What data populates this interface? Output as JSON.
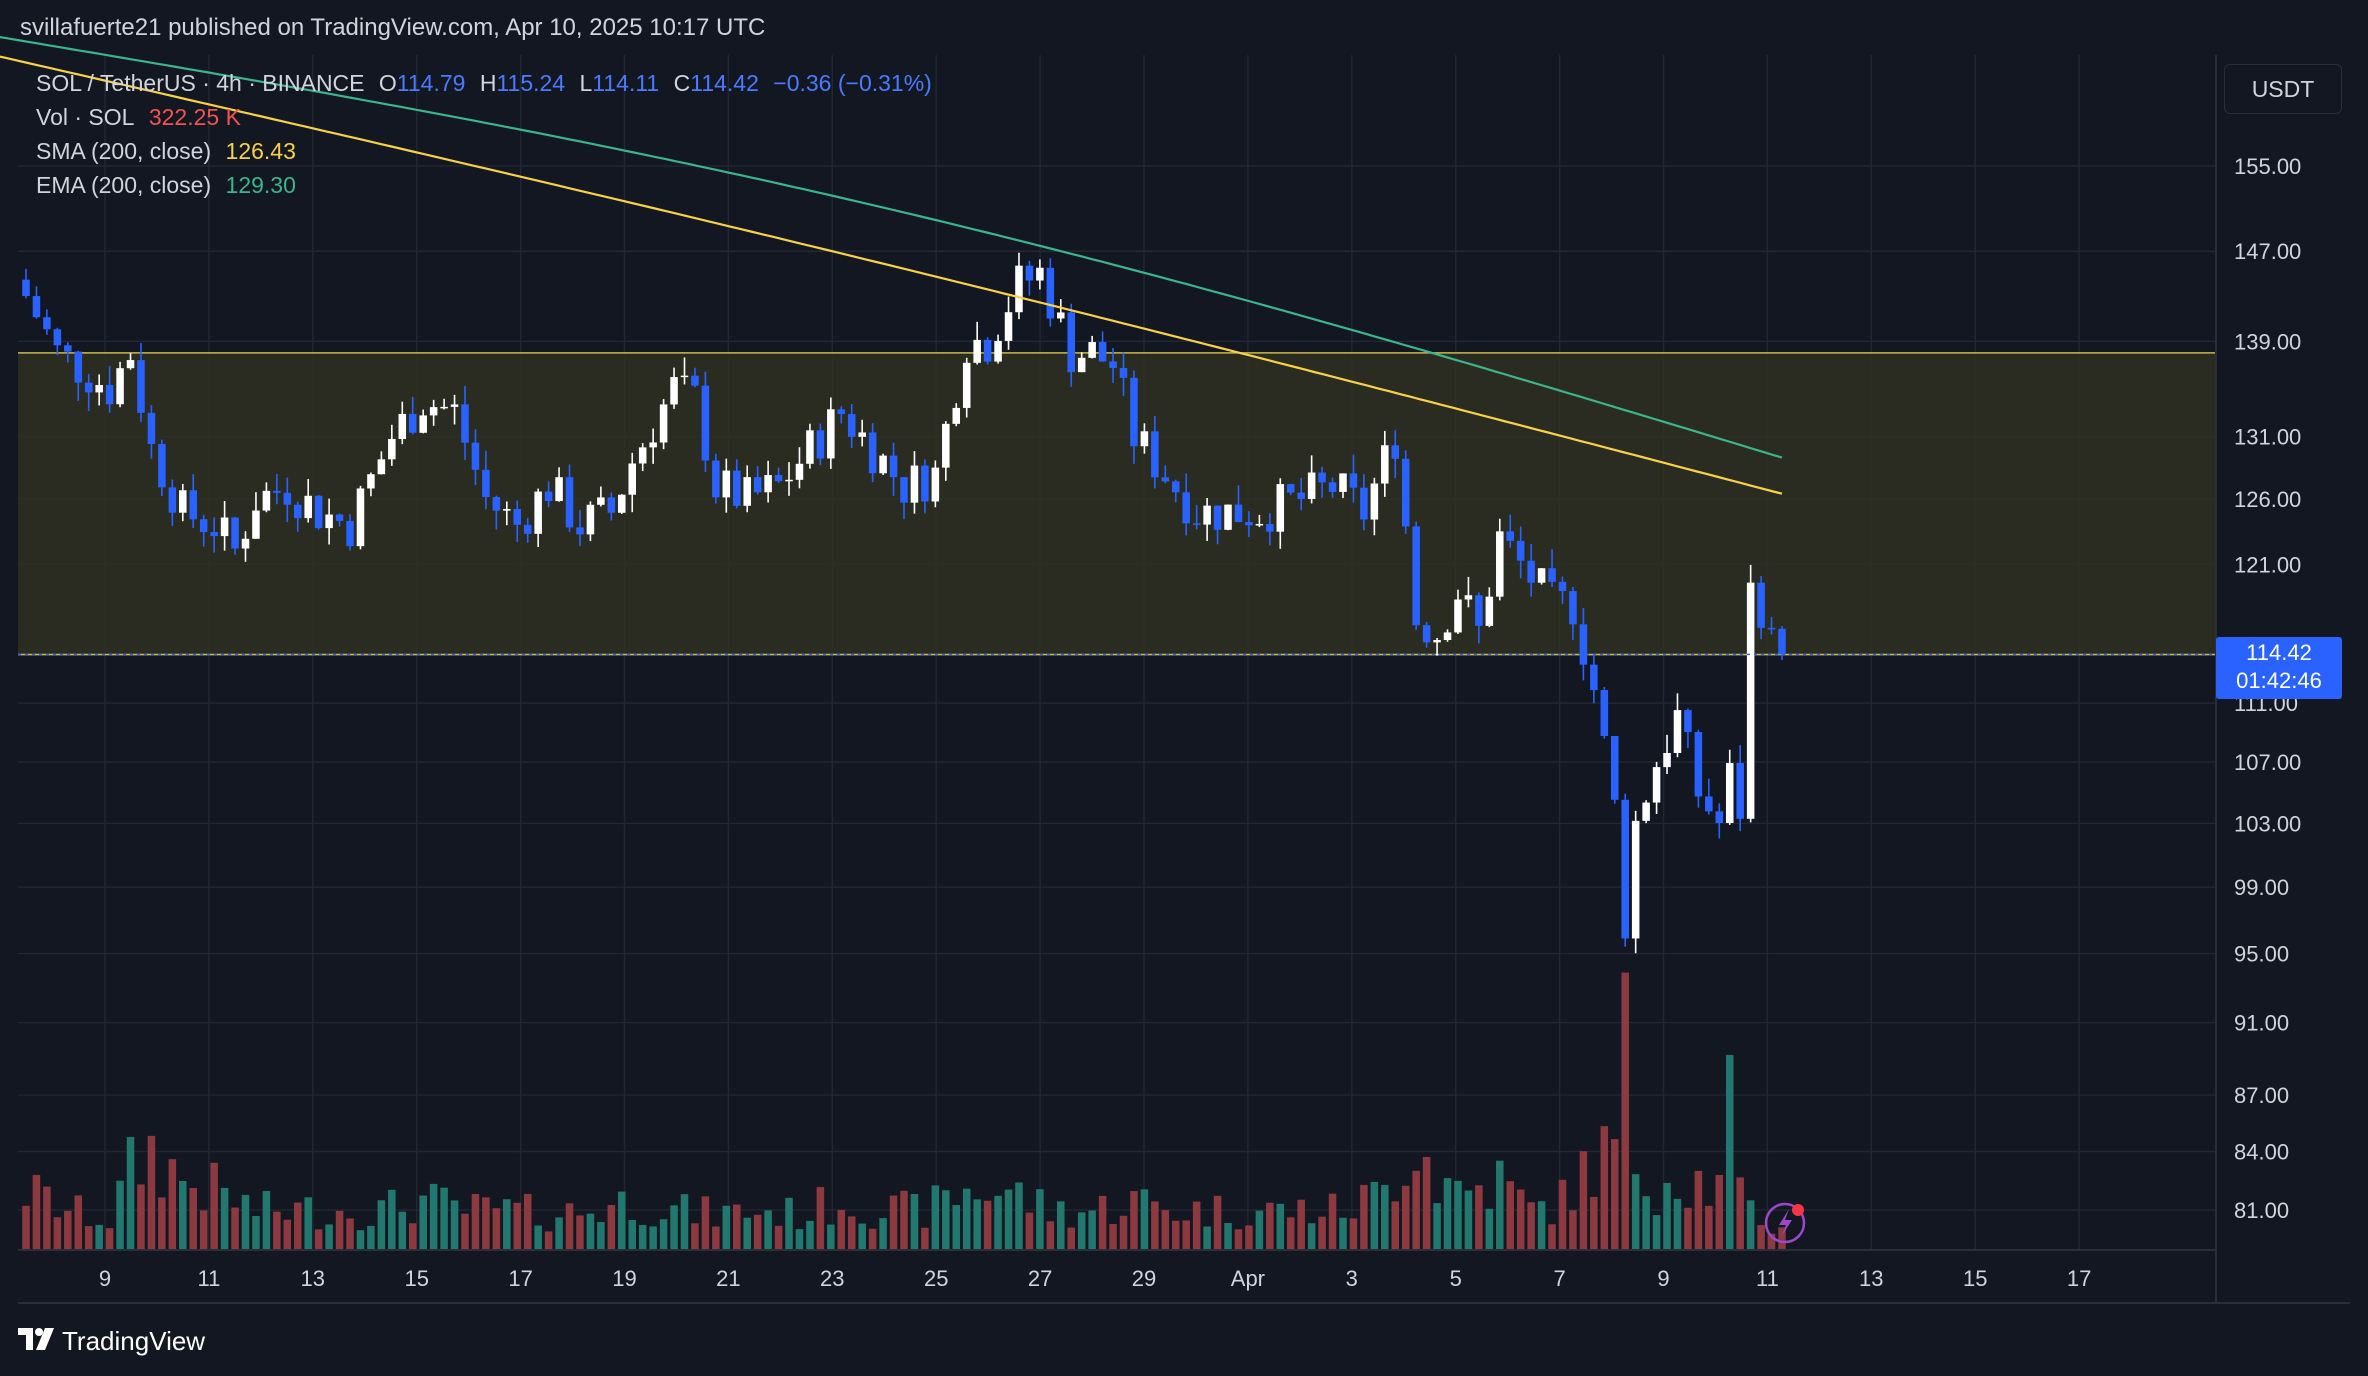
{
  "header": {
    "publisher": "svillafuerte21 published on TradingView.com, Apr 10, 2025 10:17 UTC"
  },
  "legend": {
    "symbol": "SOL / TetherUS · 4h · BINANCE",
    "o_label": "O",
    "o_value": "114.79",
    "h_label": "H",
    "h_value": "115.24",
    "l_label": "L",
    "l_value": "114.11",
    "c_label": "C",
    "c_value": "114.42",
    "change": "−0.36 (−0.31%)",
    "vol_label": "Vol · SOL",
    "vol_value": "322.25 K",
    "sma_label": "SMA (200, close)",
    "sma_value": "126.43",
    "ema_label": "EMA (200, close)",
    "ema_value": "129.30"
  },
  "currency": "USDT",
  "price_tag": {
    "price": "114.42",
    "countdown": "01:42:46"
  },
  "brand": {
    "logo": "TV",
    "name": "TradingView"
  },
  "colors": {
    "up": "#ffffff",
    "down": "#2962ff",
    "vol_up": "#22786e",
    "vol_down": "#8c3a3f",
    "sma": "#f7d147",
    "ema": "#3bb58b",
    "zone": "#2f3022",
    "zone_line": "#c9b84a"
  },
  "chart_data": {
    "type": "candlestick",
    "symbol": "SOL / TetherUS",
    "interval": "4h",
    "exchange": "BINANCE",
    "y_axis": {
      "scale": "log",
      "ticks": [
        "155.00",
        "147.00",
        "139.00",
        "131.00",
        "126.00",
        "121.00",
        "111.00",
        "107.00",
        "103.00",
        "99.00",
        "95.00",
        "91.00",
        "87.00",
        "84.00",
        "81.00"
      ],
      "range": [
        78,
        166
      ]
    },
    "x_axis": {
      "ticks": [
        "9",
        "11",
        "13",
        "15",
        "17",
        "19",
        "21",
        "23",
        "25",
        "27",
        "29",
        "Apr",
        "3",
        "5",
        "7",
        "9",
        "11",
        "13",
        "15",
        "17"
      ]
    },
    "resistance_zone": [
      114.4,
      138.0
    ],
    "last_price": 114.42,
    "sma_200": {
      "start": 166,
      "end": 126.43
    },
    "ema_200": {
      "start": 168,
      "end": 129.3
    },
    "close_path": [
      [
        0,
        143
      ],
      [
        3,
        138
      ],
      [
        8,
        135
      ],
      [
        10,
        138
      ],
      [
        12,
        130
      ],
      [
        15,
        125
      ],
      [
        18,
        124
      ],
      [
        20,
        122
      ],
      [
        22,
        126
      ],
      [
        25,
        127
      ],
      [
        28,
        125
      ],
      [
        31,
        124
      ],
      [
        35,
        131
      ],
      [
        38,
        134
      ],
      [
        41,
        133
      ],
      [
        44,
        126
      ],
      [
        47,
        124
      ],
      [
        50,
        127
      ],
      [
        53,
        124
      ],
      [
        56,
        125
      ],
      [
        58,
        129
      ],
      [
        62,
        135
      ],
      [
        64,
        134
      ],
      [
        66,
        127
      ],
      [
        69,
        126
      ],
      [
        72,
        127
      ],
      [
        75,
        130
      ],
      [
        78,
        133
      ],
      [
        81,
        130
      ],
      [
        84,
        127
      ],
      [
        87,
        128
      ],
      [
        90,
        139
      ],
      [
        92,
        139
      ],
      [
        95,
        144
      ],
      [
        97,
        145
      ],
      [
        100,
        138
      ],
      [
        102,
        138
      ],
      [
        104,
        137
      ],
      [
        106,
        131
      ],
      [
        109,
        128
      ],
      [
        112,
        125
      ],
      [
        115,
        125
      ],
      [
        118,
        125
      ],
      [
        122,
        126
      ],
      [
        125,
        127
      ],
      [
        128,
        125
      ],
      [
        131,
        131
      ],
      [
        133,
        117
      ],
      [
        135,
        116
      ],
      [
        137,
        119
      ],
      [
        139,
        116
      ],
      [
        141,
        123
      ],
      [
        143,
        121
      ],
      [
        146,
        118
      ],
      [
        148,
        118
      ],
      [
        150,
        112
      ],
      [
        152,
        104
      ],
      [
        153,
        97
      ],
      [
        154,
        103
      ],
      [
        156,
        107
      ],
      [
        158,
        110
      ],
      [
        160,
        105
      ],
      [
        162,
        103
      ],
      [
        163,
        106
      ],
      [
        164,
        104
      ],
      [
        165,
        119
      ],
      [
        166,
        118
      ],
      [
        167,
        115
      ],
      [
        168,
        114.42
      ]
    ],
    "volume_path": [
      [
        0,
        30
      ],
      [
        4,
        20
      ],
      [
        8,
        15
      ],
      [
        10,
        40
      ],
      [
        12,
        50
      ],
      [
        15,
        35
      ],
      [
        18,
        30
      ],
      [
        22,
        20
      ],
      [
        26,
        20
      ],
      [
        30,
        20
      ],
      [
        34,
        20
      ],
      [
        38,
        25
      ],
      [
        42,
        20
      ],
      [
        46,
        20
      ],
      [
        50,
        18
      ],
      [
        54,
        20
      ],
      [
        58,
        25
      ],
      [
        62,
        20
      ],
      [
        66,
        18
      ],
      [
        70,
        20
      ],
      [
        74,
        18
      ],
      [
        78,
        25
      ],
      [
        82,
        20
      ],
      [
        86,
        20
      ],
      [
        90,
        30
      ],
      [
        94,
        30
      ],
      [
        98,
        20
      ],
      [
        102,
        20
      ],
      [
        106,
        25
      ],
      [
        110,
        20
      ],
      [
        114,
        20
      ],
      [
        118,
        20
      ],
      [
        122,
        20
      ],
      [
        126,
        20
      ],
      [
        130,
        30
      ],
      [
        133,
        60
      ],
      [
        135,
        35
      ],
      [
        138,
        30
      ],
      [
        141,
        35
      ],
      [
        144,
        20
      ],
      [
        147,
        25
      ],
      [
        150,
        45
      ],
      [
        152,
        50
      ],
      [
        153,
        100
      ],
      [
        154,
        45
      ],
      [
        156,
        35
      ],
      [
        158,
        40
      ],
      [
        160,
        35
      ],
      [
        162,
        30
      ],
      [
        163,
        80
      ],
      [
        164,
        25
      ],
      [
        166,
        15
      ],
      [
        168,
        10
      ]
    ]
  }
}
